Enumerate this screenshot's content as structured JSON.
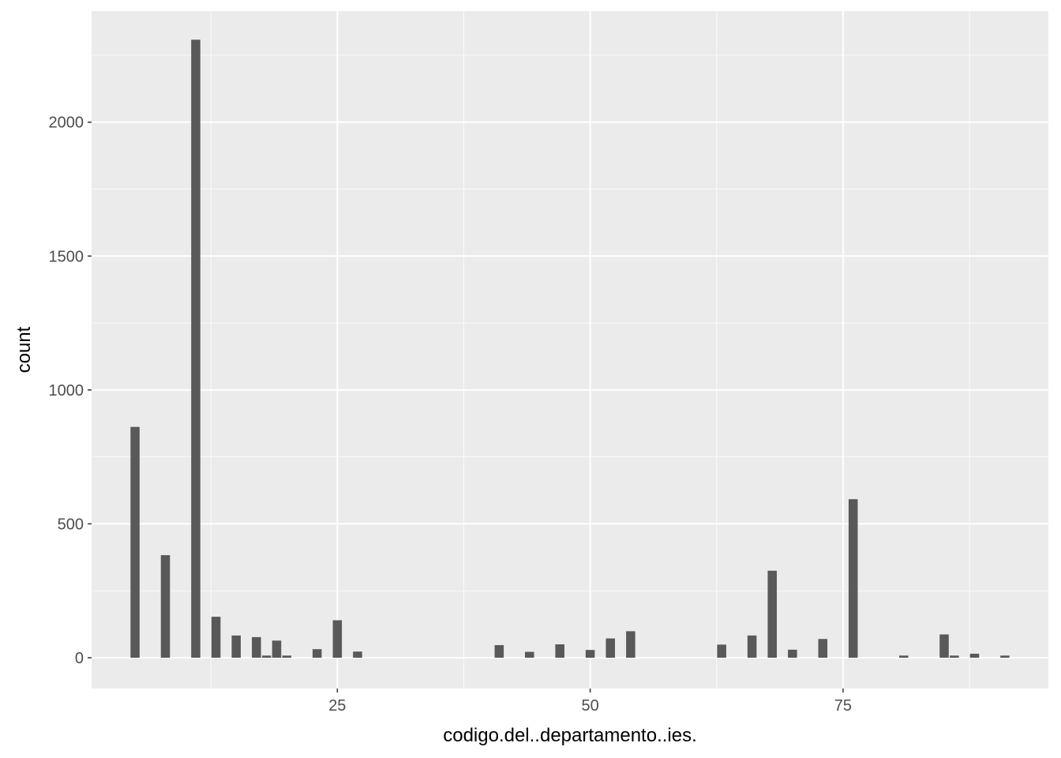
{
  "chart_data": {
    "type": "bar",
    "title": "",
    "xlabel": "codigo.del..departamento..ies.",
    "ylabel": "count",
    "xlim": [
      0.7,
      95.3
    ],
    "ylim": [
      -115,
      2415
    ],
    "x_ticks": [
      25,
      50,
      75
    ],
    "y_ticks": [
      0,
      500,
      1000,
      1500,
      2000
    ],
    "grid": true,
    "bin_width": 0.9,
    "series": [
      {
        "x": [
          5,
          8,
          11,
          13,
          15,
          17,
          18,
          19,
          20,
          23,
          25,
          27,
          41,
          44,
          47,
          50,
          52,
          54,
          63,
          66,
          68,
          70,
          73,
          76,
          81,
          85,
          86,
          88,
          91
        ],
        "values": [
          862,
          383,
          2308,
          153,
          83,
          77,
          8,
          64,
          8,
          32,
          140,
          23,
          47,
          22,
          50,
          29,
          72,
          99,
          49,
          83,
          325,
          30,
          70,
          592,
          8,
          87,
          8,
          15,
          8
        ]
      }
    ],
    "colors": {
      "panel_background": "#ebebeb",
      "grid_major": "#ffffff",
      "bar_fill": "#595959",
      "tick_text": "#4d4d4d",
      "axis_title": "#000000"
    }
  }
}
